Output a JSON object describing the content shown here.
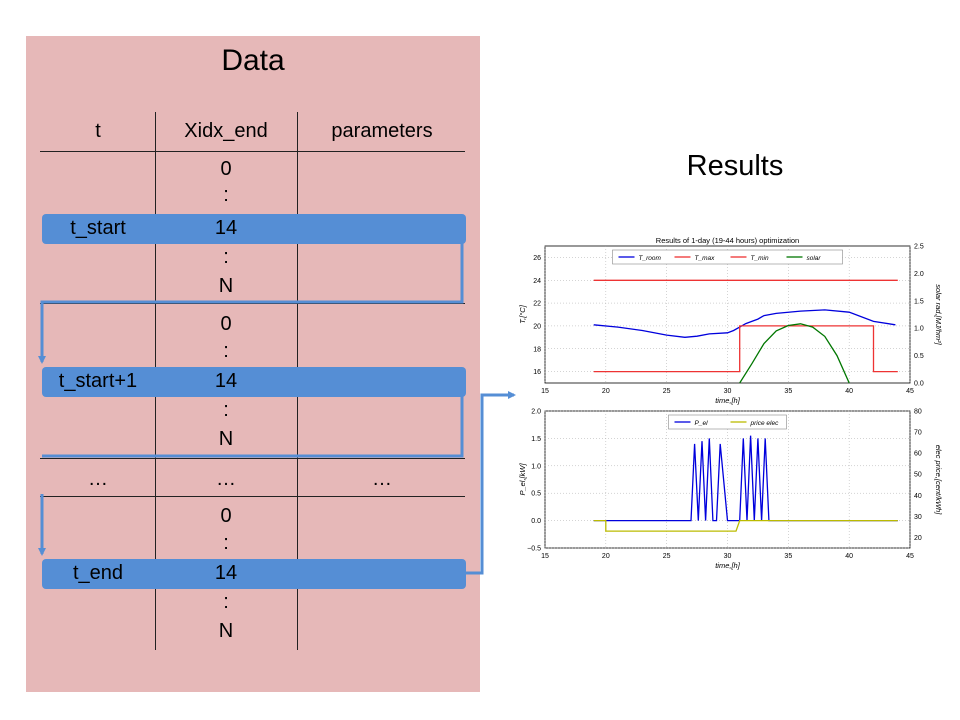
{
  "data_panel": {
    "title": "Data",
    "headers": [
      "t",
      "Xidx_end",
      "parameters"
    ],
    "groups": [
      {
        "t": "t_start",
        "idx": [
          "0",
          ":",
          "14",
          ":",
          "N"
        ]
      },
      {
        "t": "t_start+1",
        "idx": [
          "0",
          ":",
          "14",
          ":",
          "N"
        ]
      },
      {
        "t": "t_end",
        "idx": [
          "0",
          ":",
          "14",
          ":",
          "N"
        ]
      }
    ],
    "ellipsis": [
      "…",
      "…",
      "…"
    ]
  },
  "results": {
    "title": "Results"
  },
  "chart_data": [
    {
      "type": "line",
      "title": "Results of 1-day (19-44 hours) optimization",
      "xlabel": "time,[h]",
      "ylabel": "T,[°C]",
      "y2label": "solar rad,[MJ/hm²]",
      "xlim": [
        15,
        45
      ],
      "ylim": [
        15,
        27
      ],
      "y2lim": [
        0.0,
        2.5
      ],
      "xticks": [
        "15",
        "20",
        "25",
        "30",
        "35",
        "40",
        "45"
      ],
      "yticks": [
        "16",
        "18",
        "20",
        "22",
        "24",
        "26"
      ],
      "y2ticks": [
        "0.0",
        "0.5",
        "1.0",
        "1.5",
        "2.0",
        "2.5"
      ],
      "legend": [
        "T_room",
        "T_max",
        "T_min",
        "solar"
      ],
      "legend_position": "top",
      "grid": true,
      "series": [
        {
          "name": "T_room",
          "color": "#0000dd",
          "axis": "y",
          "x": [
            19,
            21,
            23,
            25,
            26.5,
            27.5,
            28.5,
            30,
            30.5,
            31,
            31.5,
            32,
            32.5,
            33,
            34,
            36,
            38,
            40,
            42,
            43.8
          ],
          "y": [
            20.1,
            19.9,
            19.6,
            19.2,
            19.0,
            19.1,
            19.3,
            19.4,
            19.6,
            19.9,
            20.2,
            20.4,
            20.6,
            20.9,
            21.1,
            21.3,
            21.4,
            21.2,
            20.4,
            20.1
          ]
        },
        {
          "name": "T_max",
          "color": "#ee3333",
          "axis": "y",
          "x": [
            19,
            44
          ],
          "y": [
            24,
            24
          ]
        },
        {
          "name": "T_min",
          "color": "#ee3333",
          "axis": "y",
          "x": [
            19,
            31,
            31,
            42,
            42,
            44
          ],
          "y": [
            16,
            16,
            20,
            20,
            16,
            16
          ]
        },
        {
          "name": "solar",
          "color": "#007700",
          "axis": "y2",
          "x": [
            31,
            32,
            33,
            34,
            35,
            36,
            37,
            38,
            39,
            40
          ],
          "y": [
            0.0,
            0.35,
            0.72,
            0.95,
            1.05,
            1.08,
            1.02,
            0.85,
            0.5,
            0.0
          ]
        }
      ]
    },
    {
      "type": "line",
      "title": "",
      "xlabel": "time,[h]",
      "ylabel": "P_el,[kW]",
      "y2label": "elec price,[cent/kWh]",
      "xlim": [
        15,
        45
      ],
      "ylim": [
        -0.5,
        2.0
      ],
      "y2lim": [
        15,
        80
      ],
      "xticks": [
        "15",
        "20",
        "25",
        "30",
        "35",
        "40",
        "45"
      ],
      "yticks": [
        "−0.5",
        "0.0",
        "0.5",
        "1.0",
        "1.5",
        "2.0"
      ],
      "y2ticks": [
        "20",
        "30",
        "40",
        "50",
        "60",
        "70",
        "80"
      ],
      "legend": [
        "P_el",
        "price elec"
      ],
      "legend_position": "top",
      "grid": true,
      "series": [
        {
          "name": "P_el",
          "color": "#0000dd",
          "axis": "y",
          "x": [
            19,
            27,
            27.3,
            27.6,
            27.9,
            28.2,
            28.5,
            28.8,
            29.1,
            29.4,
            30.0,
            30.3,
            30.6,
            31.0,
            31.3,
            31.6,
            31.9,
            32.2,
            32.5,
            32.8,
            33.1,
            33.4,
            44
          ],
          "y": [
            0,
            0,
            1.4,
            0,
            1.45,
            0,
            1.5,
            0,
            0,
            1.4,
            0,
            0,
            0,
            0,
            1.5,
            0,
            1.55,
            0,
            1.5,
            0,
            1.5,
            0,
            0
          ]
        },
        {
          "name": "price elec",
          "color": "#bbbb00",
          "axis": "y2",
          "x": [
            19,
            20,
            20,
            30.7,
            31,
            44
          ],
          "y": [
            28,
            28,
            23,
            23,
            28,
            28
          ]
        }
      ]
    }
  ]
}
